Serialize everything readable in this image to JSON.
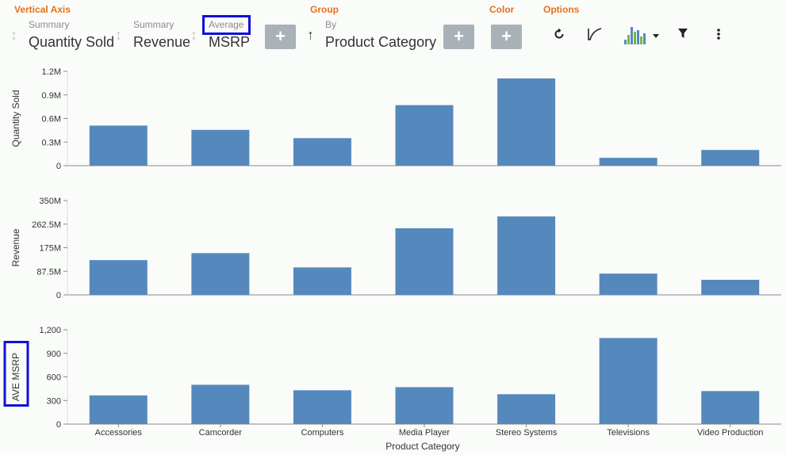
{
  "toolbar": {
    "vertical_axis_title": "Vertical Axis",
    "group_title": "Group",
    "color_title": "Color",
    "options_title": "Options",
    "fields": [
      {
        "prefix": "Summary",
        "name": "Quantity Sold"
      },
      {
        "prefix": "Summary",
        "name": "Revenue"
      },
      {
        "prefix": "Average",
        "name": "MSRP"
      }
    ],
    "group_field": {
      "prefix": "By",
      "name": "Product Category"
    },
    "add_label": "+",
    "icons": [
      "refresh-icon",
      "curve-icon",
      "chart-type-icon",
      "filter-icon",
      "more-vertical-icon"
    ]
  },
  "chart_data": {
    "type": "bar",
    "xlabel": "Product Category",
    "categories": [
      "Accessories",
      "Camcorder",
      "Computers",
      "Media Player",
      "Stereo Systems",
      "Televisions",
      "Video Production"
    ],
    "bar_color": "#5589bd",
    "highlight_color": "#1010d8",
    "panels": [
      {
        "ylabel": "Quantity Sold",
        "ylim": [
          0,
          1200000
        ],
        "ticks": [
          {
            "v": 0,
            "label": "0"
          },
          {
            "v": 300000,
            "label": "0.3M"
          },
          {
            "v": 600000,
            "label": "0.6M"
          },
          {
            "v": 900000,
            "label": "0.9M"
          },
          {
            "v": 1200000,
            "label": "1.2M"
          }
        ],
        "values": [
          510000,
          455000,
          350000,
          770000,
          1110000,
          100000,
          200000
        ]
      },
      {
        "ylabel": "Revenue",
        "ylim": [
          0,
          350000000
        ],
        "ticks": [
          {
            "v": 0,
            "label": "0"
          },
          {
            "v": 87500000,
            "label": "87.5M"
          },
          {
            "v": 175000000,
            "label": "175M"
          },
          {
            "v": 262500000,
            "label": "262.5M"
          },
          {
            "v": 350000000,
            "label": "350M"
          }
        ],
        "values": [
          129000000,
          155000000,
          102000000,
          247000000,
          291000000,
          79000000,
          56000000
        ]
      },
      {
        "ylabel": "AVE MSRP",
        "ylim": [
          0,
          1200
        ],
        "ticks": [
          {
            "v": 0,
            "label": "0"
          },
          {
            "v": 300,
            "label": "300"
          },
          {
            "v": 600,
            "label": "600"
          },
          {
            "v": 900,
            "label": "900"
          },
          {
            "v": 1200,
            "label": "1,200"
          }
        ],
        "values": [
          365,
          500,
          430,
          470,
          380,
          1095,
          420
        ]
      }
    ]
  }
}
